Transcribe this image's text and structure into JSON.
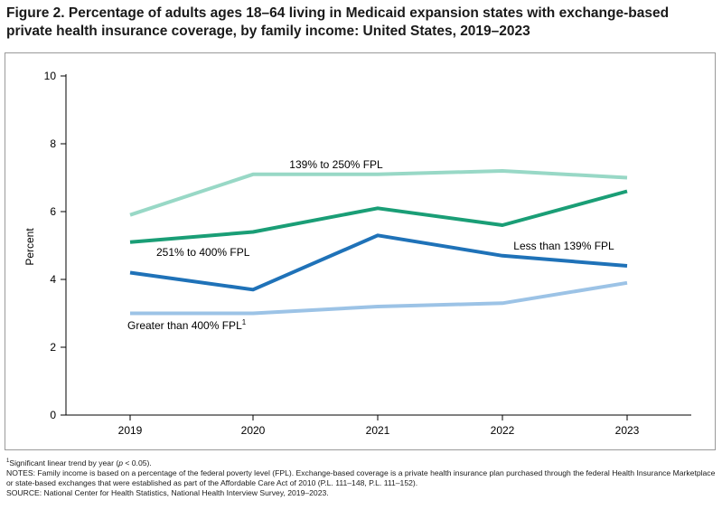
{
  "title_line1": "Figure 2. Percentage of adults ages 18–64 living in Medicaid expansion states with exchange-based",
  "title_line2": "private health insurance coverage, by family income: United States, 2019–2023",
  "chart_data": {
    "type": "line",
    "title": "Figure 2. Percentage of adults ages 18–64 living in Medicaid expansion states with exchange-based private health insurance coverage, by family income: United States, 2019–2023",
    "xlabel": "",
    "ylabel": "Percent",
    "ylim": [
      0,
      10
    ],
    "yticks": [
      "0",
      "2",
      "4",
      "6",
      "8",
      "10"
    ],
    "x": [
      "2019",
      "2020",
      "2021",
      "2022",
      "2023"
    ],
    "series": [
      {
        "name": "139% to 250% FPL",
        "color": "#98d8c6",
        "values": [
          5.9,
          7.1,
          7.1,
          7.2,
          7.0
        ]
      },
      {
        "name": "251% to 400% FPL",
        "color": "#1a9e76",
        "values": [
          5.1,
          5.4,
          6.1,
          5.6,
          6.6
        ]
      },
      {
        "name": "Less than 139% FPL",
        "color": "#1f72b8",
        "values": [
          4.2,
          3.7,
          5.3,
          4.7,
          4.4
        ]
      },
      {
        "name": "Greater than 400% FPL",
        "superscript": "1",
        "color": "#9cc3e6",
        "values": [
          3.0,
          3.0,
          3.2,
          3.3,
          3.9
        ]
      }
    ]
  },
  "footnote_marker": "1",
  "footnote_text": "Significant linear trend by year (",
  "footnote_p": "p",
  "footnote_end": " < 0.05).",
  "notes": "NOTES: Family income is based on a percentage of the federal poverty level (FPL). Exchange-based coverage is a private health insurance plan purchased through the federal Health Insurance Marketplace or state-based exchanges that were established as part of the Affordable Care Act of 2010 (P.L. 111–148, P.L. 111–152).",
  "source": "SOURCE: National Center for Health Statistics, National Health Interview Survey, 2019–2023."
}
